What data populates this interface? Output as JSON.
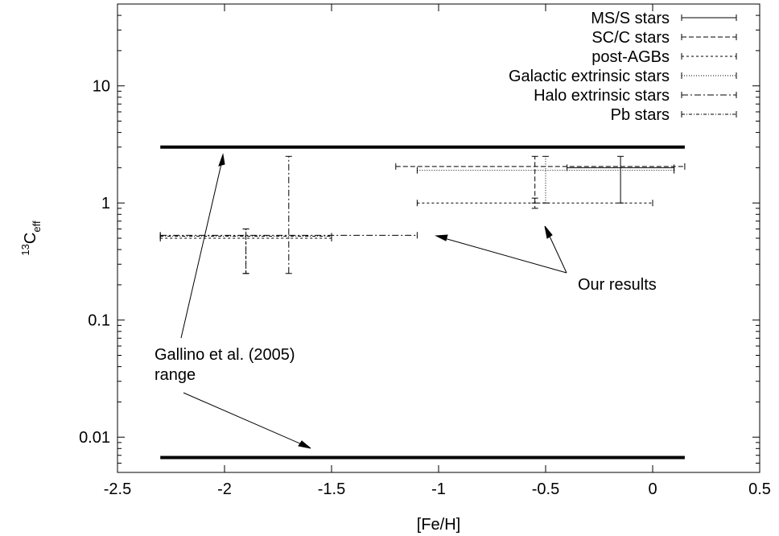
{
  "chart_data": {
    "type": "errorbar",
    "xlabel": "[Fe/H]",
    "ylabel_base": "C",
    "ylabel_sup": "13",
    "ylabel_sub": "eff",
    "xlim": [
      -2.5,
      0.5
    ],
    "ylim": [
      0.005,
      50
    ],
    "yscale": "log",
    "grid": false,
    "legend_position": "top-right",
    "x_ticks": [
      {
        "v": -2.5,
        "label": "-2.5"
      },
      {
        "v": -2,
        "label": "-2"
      },
      {
        "v": -1.5,
        "label": "-1.5"
      },
      {
        "v": -1,
        "label": "-1"
      },
      {
        "v": -0.5,
        "label": "-0.5"
      },
      {
        "v": 0,
        "label": "0"
      },
      {
        "v": 0.5,
        "label": "0.5"
      }
    ],
    "y_ticks": [
      {
        "v": 0.01,
        "label": "0.01"
      },
      {
        "v": 0.1,
        "label": "0.1"
      },
      {
        "v": 1,
        "label": "1"
      },
      {
        "v": 10,
        "label": "10"
      }
    ],
    "range_lines": [
      {
        "y": 3.0,
        "x0": -2.3,
        "x1": 0.15
      },
      {
        "y": 0.0067,
        "x0": -2.3,
        "x1": 0.15
      }
    ],
    "series": [
      {
        "name": "MS/S stars",
        "dash": "",
        "points": [
          {
            "x0": -0.4,
            "x1": 0.1,
            "y": 2.0,
            "xc": -0.15,
            "y0": 1.0,
            "y1": 2.5
          }
        ]
      },
      {
        "name": "SC/C stars",
        "dash": "6,3",
        "points": [
          {
            "x0": -1.2,
            "x1": 0.15,
            "y": 2.05,
            "xc": -0.55,
            "y0": 1.0,
            "y1": 2.5
          }
        ]
      },
      {
        "name": "post-AGBs",
        "dash": "3,3",
        "points": [
          {
            "x0": -1.1,
            "x1": 0.0,
            "y": 1.0,
            "xc": -0.55,
            "y0": 0.9,
            "y1": 1.1
          },
          {
            "x0": -2.3,
            "x1": -1.5,
            "y": 0.5,
            "xc": -1.9,
            "y0": 0.25,
            "y1": 0.6
          }
        ]
      },
      {
        "name": "Galactic extrinsic stars",
        "dash": "1,2",
        "points": [
          {
            "x0": -1.1,
            "x1": 0.1,
            "y": 1.9,
            "xc": -0.5,
            "y0": 1.0,
            "y1": 2.5
          }
        ]
      },
      {
        "name": "Halo extrinsic stars",
        "dash": "8,3,2,3",
        "points": [
          {
            "x0": -2.3,
            "x1": -1.1,
            "y": 0.53,
            "xc": -1.7,
            "y0": 0.25,
            "y1": 2.5
          }
        ]
      },
      {
        "name": "Pb stars",
        "dash": "4,2,1,2",
        "points": [
          {
            "x0": -2.3,
            "x1": -1.5,
            "y": 0.52,
            "xc": -1.9,
            "y0": 0.25,
            "y1": 0.6
          }
        ]
      }
    ],
    "annotations": {
      "gallino_line1": "Gallino et al. (2005)",
      "gallino_line2": "range",
      "ours": "Our results"
    }
  }
}
